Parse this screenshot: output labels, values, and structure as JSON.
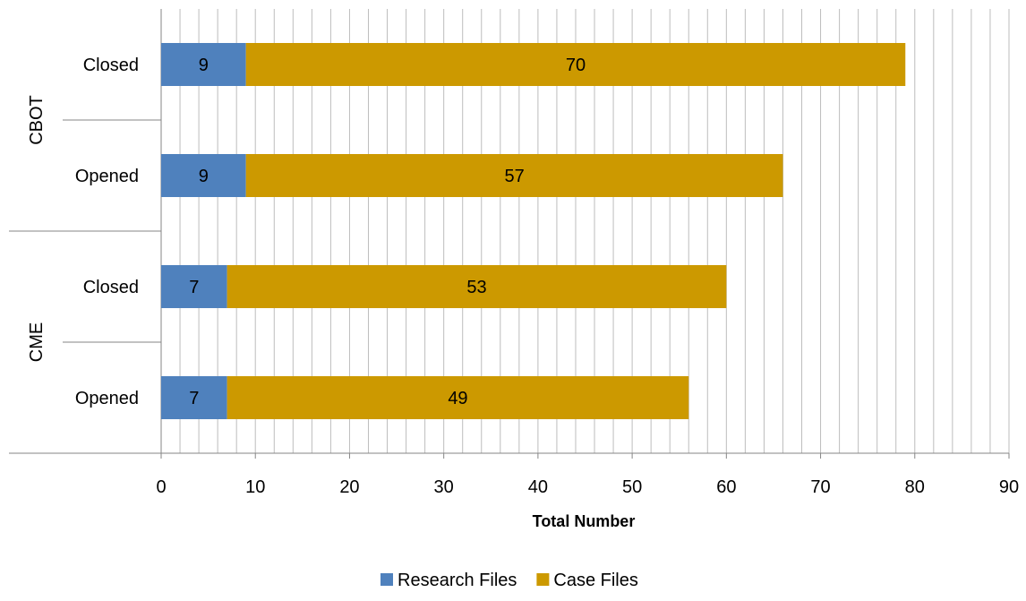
{
  "chart_data": {
    "type": "bar",
    "orientation": "horizontal",
    "stacked": true,
    "title": "",
    "xlabel": "Total Number",
    "ylabel": "",
    "xlim": [
      0,
      90
    ],
    "x_ticks": [
      0,
      10,
      20,
      30,
      40,
      50,
      60,
      70,
      80,
      90
    ],
    "minor_grid_step": 2,
    "grid": true,
    "legend_position": "bottom",
    "groups": [
      {
        "name": "CBOT",
        "categories": [
          "Closed",
          "Opened"
        ]
      },
      {
        "name": "CME",
        "categories": [
          "Closed",
          "Opened"
        ]
      }
    ],
    "categories": [
      "Closed",
      "Opened",
      "Closed",
      "Opened"
    ],
    "series": [
      {
        "name": "Research Files",
        "color": "#4f81bd",
        "values": [
          9,
          9,
          7,
          7
        ]
      },
      {
        "name": "Case Files",
        "color": "#cc9900",
        "values": [
          70,
          57,
          53,
          49
        ]
      }
    ]
  }
}
